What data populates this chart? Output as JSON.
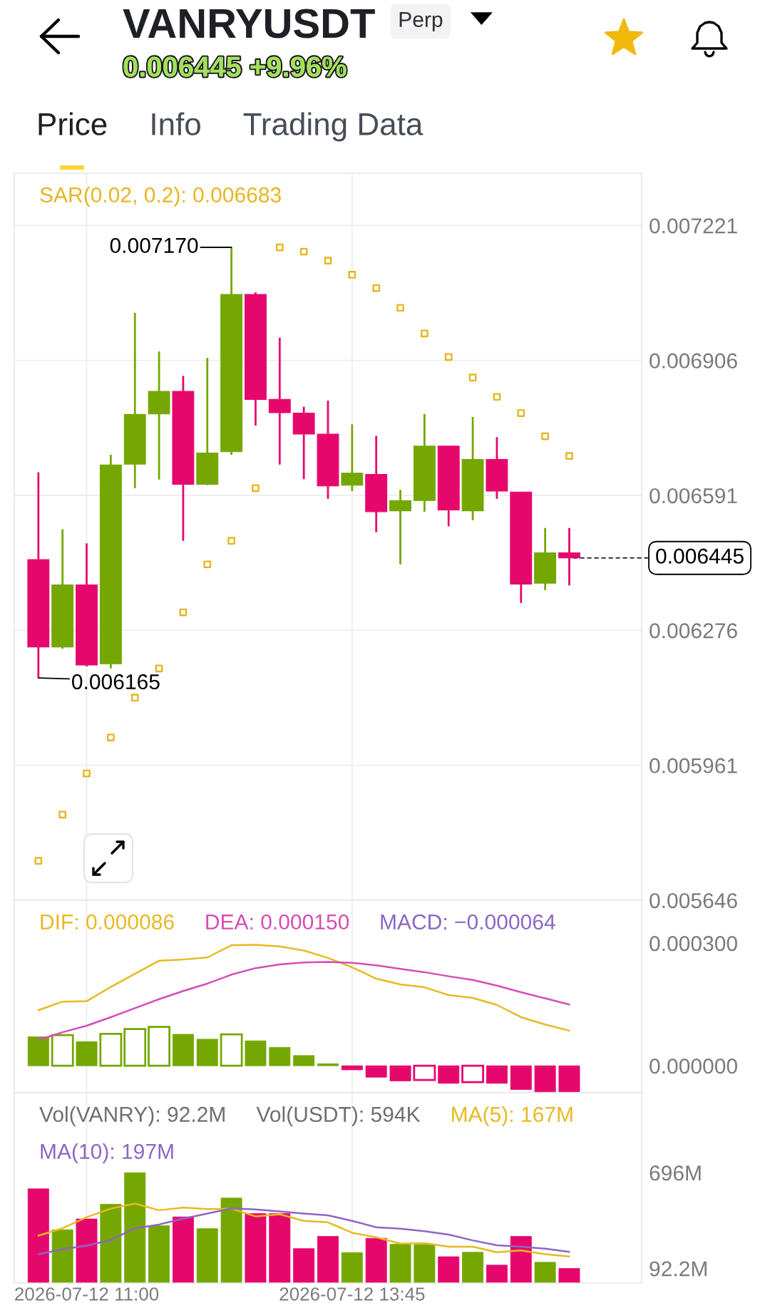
{
  "chart_data": [
    {
      "type": "candlestick",
      "title": "VANRYUSDT",
      "subtitle": "0.006445 +9.96%",
      "annotations": [
        "Perp",
        "Price",
        "Info",
        "Trading Data",
        {
          "text": "0.007170",
          "x": "2026-07-12T12:30",
          "y": 0.00717
        },
        {
          "text": "0.006165",
          "x": "2026-07-12T10:30",
          "y": 0.006165
        },
        {
          "text": "0.006445",
          "x": "2026-07-12T16:00",
          "y": 0.006445
        }
      ],
      "x": [
        "2026-07-12T10:30",
        "2026-07-12T10:45",
        "2026-07-12T11:00",
        "2026-07-12T11:15",
        "2026-07-12T11:30",
        "2026-07-12T11:45",
        "2026-07-12T12:00",
        "2026-07-12T12:15",
        "2026-07-12T12:30",
        "2026-07-12T12:45",
        "2026-07-12T13:00",
        "2026-07-12T13:15",
        "2026-07-12T13:30",
        "2026-07-12T13:45",
        "2026-07-12T14:00",
        "2026-07-12T14:15",
        "2026-07-12T14:30",
        "2026-07-12T14:45",
        "2026-07-12T15:00",
        "2026-07-12T15:15",
        "2026-07-12T15:30",
        "2026-07-12T15:45",
        "2026-07-12T16:00"
      ],
      "ohlc": [
        [
          0.006441,
          0.006645,
          0.006165,
          0.006237
        ],
        [
          0.006237,
          0.006512,
          0.006233,
          0.006382
        ],
        [
          0.006382,
          0.006479,
          0.006192,
          0.006195
        ],
        [
          0.006198,
          0.006686,
          0.006187,
          0.006662
        ],
        [
          0.006664,
          0.007017,
          0.006608,
          0.00678
        ],
        [
          0.006781,
          0.006927,
          0.006628,
          0.006834
        ],
        [
          0.006834,
          0.00687,
          0.006485,
          0.006617
        ],
        [
          0.006617,
          0.006912,
          0.006615,
          0.00669
        ],
        [
          0.006693,
          0.00717,
          0.006686,
          0.00706
        ],
        [
          0.00706,
          0.007065,
          0.006754,
          0.006815
        ],
        [
          0.006815,
          0.006959,
          0.006663,
          0.006784
        ],
        [
          0.006783,
          0.006798,
          0.006629,
          0.006734
        ],
        [
          0.006734,
          0.006812,
          0.006583,
          0.006613
        ],
        [
          0.006615,
          0.006757,
          0.006601,
          0.006643
        ],
        [
          0.00664,
          0.00673,
          0.006505,
          0.006553
        ],
        [
          0.006555,
          0.006604,
          0.00643,
          0.006579
        ],
        [
          0.006579,
          0.006781,
          0.006553,
          0.006706
        ],
        [
          0.006706,
          0.006706,
          0.006519,
          0.006557
        ],
        [
          0.006555,
          0.006774,
          0.006533,
          0.006675
        ],
        [
          0.006675,
          0.006727,
          0.006583,
          0.006601
        ],
        [
          0.006599,
          0.006599,
          0.00634,
          0.006384
        ],
        [
          0.006386,
          0.006515,
          0.00637,
          0.006457
        ],
        [
          0.006457,
          0.006515,
          0.006381,
          0.006445
        ]
      ],
      "colors": [
        "#e6076d",
        "#75a703",
        "#e6076d",
        "#75a703",
        "#75a703",
        "#75a703",
        "#e6076d",
        "#75a703",
        "#75a703",
        "#e6076d",
        "#e6076d",
        "#e6076d",
        "#e6076d",
        "#75a703",
        "#e6076d",
        "#75a703",
        "#75a703",
        "#e6076d",
        "#75a703",
        "#e6076d",
        "#e6076d",
        "#75a703",
        "#e6076d"
      ],
      "series": [
        {
          "name": "SAR(0.02, 0.2): 0.006683",
          "type": "scatter",
          "marker": "square",
          "color": "#e6b520",
          "values": [
            0.005738,
            0.005846,
            0.005942,
            0.006026,
            0.006119,
            0.006187,
            0.006318,
            0.00643,
            0.006485,
            0.006608,
            0.00717,
            0.00716,
            0.007139,
            0.007106,
            0.007075,
            0.007029,
            0.006969,
            0.006914,
            0.006866,
            0.006821,
            0.006783,
            0.006729,
            0.006683
          ]
        }
      ],
      "xlim": [
        "2026-07-12T10:15",
        "2026-07-12T16:45"
      ],
      "xticks": [
        {
          "value": "2026-07-12T11:00",
          "label": null
        },
        {
          "value": "2026-07-12T13:45",
          "label": null
        }
      ],
      "ylim": [
        0.005646,
        0.007343
      ],
      "yticks": [
        0.007221,
        0.006906,
        0.006591,
        0.006276,
        0.005961,
        0.005646
      ],
      "grid": true,
      "legend": "top left",
      "tick_labels": "y"
    },
    {
      "type": "bar",
      "annotations": [
        "MACD: −0.000064"
      ],
      "x": [
        "2026-07-12T10:30",
        "2026-07-12T10:45",
        "2026-07-12T11:00",
        "2026-07-12T11:15",
        "2026-07-12T11:30",
        "2026-07-12T11:45",
        "2026-07-12T12:00",
        "2026-07-12T12:15",
        "2026-07-12T12:30",
        "2026-07-12T12:45",
        "2026-07-12T13:00",
        "2026-07-12T13:15",
        "2026-07-12T13:30",
        "2026-07-12T13:45",
        "2026-07-12T14:00",
        "2026-07-12T14:15",
        "2026-07-12T14:30",
        "2026-07-12T14:45",
        "2026-07-12T15:00",
        "2026-07-12T15:15",
        "2026-07-12T15:30",
        "2026-07-12T15:45",
        "2026-07-12T16:00"
      ],
      "series": [
        {
          "name": "DIF: 0.000086",
          "type": "line",
          "color": "#e8b923",
          "values": [
            0.000136,
            0.000157,
            0.000158,
            0.000193,
            0.000225,
            0.000257,
            0.00026,
            0.000265,
            0.000295,
            0.000296,
            0.000292,
            0.000282,
            0.000264,
            0.000241,
            0.000213,
            0.000199,
            0.000192,
            0.000173,
            0.000166,
            0.000149,
            0.000119,
            0.000101,
            8.6e-05
          ]
        },
        {
          "name": "DEA: 0.000150",
          "type": "line",
          "color": "#d54db6",
          "values": [
            6.3e-05,
            8.2e-05,
            9.8e-05,
            0.000119,
            0.000141,
            0.000163,
            0.000183,
            0.000201,
            0.000223,
            0.000239,
            0.000248,
            0.000253,
            0.000254,
            0.000252,
            0.000246,
            0.000237,
            0.000229,
            0.000219,
            0.00021,
            0.000196,
            0.00018,
            0.000165,
            0.00015
          ]
        },
        {
          "type": "bar",
          "colors": [
            "#75a703",
            "#75a703",
            "#75a703",
            "#75a703",
            "#75a703",
            "#75a703",
            "#75a703",
            "#75a703",
            "#75a703",
            "#75a703",
            "#75a703",
            "#75a703",
            "#75a703",
            "#e6076d",
            "#e6076d",
            "#e6076d",
            "#e6076d",
            "#e6076d",
            "#e6076d",
            "#e6076d",
            "#e6076d",
            "#e6076d",
            "#e6076d"
          ],
          "values": [
            7.1e-05,
            7.5e-05,
            5.9e-05,
            7.8e-05,
            9e-05,
            9.5e-05,
            7.7e-05,
            6.5e-05,
            7.7e-05,
            6.1e-05,
            4.5e-05,
            2.5e-05,
            5e-06,
            -1e-05,
            -2.8e-05,
            -3.7e-05,
            -3.5e-05,
            -4.3e-05,
            -4e-05,
            -4.3e-05,
            -5.8e-05,
            -6.4e-05,
            -6.4e-05
          ]
        }
      ],
      "xlim": [
        "2026-07-12T10:15",
        "2026-07-12T16:45"
      ],
      "xticks": [
        {
          "value": "2026-07-12T11:00",
          "label": null
        },
        {
          "value": "2026-07-12T13:45",
          "label": null
        }
      ],
      "ylim": [
        -6.6e-05,
        0.000405
      ],
      "yticks": [
        {
          "value": 0.0003,
          "label": "0.000300"
        },
        {
          "value": 0,
          "label": "0.000000"
        }
      ],
      "grid": "x",
      "legend": "top left",
      "tick_labels": "y"
    },
    {
      "type": "bar",
      "annotations": [
        "Vol(VANRY): 92.2M",
        "Vol(USDT): 594K"
      ],
      "x": [
        "2026-07-12T10:30",
        "2026-07-12T10:45",
        "2026-07-12T11:00",
        "2026-07-12T11:15",
        "2026-07-12T11:30",
        "2026-07-12T11:45",
        "2026-07-12T12:00",
        "2026-07-12T12:15",
        "2026-07-12T12:30",
        "2026-07-12T12:45",
        "2026-07-12T13:00",
        "2026-07-12T13:15",
        "2026-07-12T13:30",
        "2026-07-12T13:45",
        "2026-07-12T14:00",
        "2026-07-12T14:15",
        "2026-07-12T14:30",
        "2026-07-12T14:45",
        "2026-07-12T15:00",
        "2026-07-12T15:15",
        "2026-07-12T15:30",
        "2026-07-12T15:45",
        "2026-07-12T16:00"
      ],
      "series": [
        {
          "type": "bar",
          "colors": [
            "#e6076d",
            "#75a703",
            "#e6076d",
            "#75a703",
            "#75a703",
            "#75a703",
            "#e6076d",
            "#75a703",
            "#75a703",
            "#e6076d",
            "#e6076d",
            "#e6076d",
            "#e6076d",
            "#75a703",
            "#e6076d",
            "#75a703",
            "#75a703",
            "#e6076d",
            "#75a703",
            "#e6076d",
            "#e6076d",
            "#75a703",
            "#e6076d"
          ],
          "values": [
            594,
            336,
            404,
            497,
            696,
            362,
            417,
            343,
            536,
            438,
            438,
            217,
            294,
            192,
            282,
            245,
            243,
            166,
            194,
            113,
            294,
            131,
            92.2
          ]
        },
        {
          "name": "MA(5): 167M",
          "type": "line",
          "color": "#e8b923",
          "values": [
            299,
            345,
            415,
            469,
            501,
            459,
            476,
            466,
            469,
            420,
            434,
            392,
            383,
            317,
            289,
            248,
            252,
            229,
            229,
            194,
            206,
            182,
            167
          ]
        },
        {
          "name": "MA(10): 197M",
          "type": "line",
          "color": "#8d66c4",
          "values": [
            182,
            213,
            236,
            271,
            345,
            369,
            406,
            438,
            471,
            464,
            452,
            438,
            427,
            392,
            352,
            343,
            327,
            306,
            269,
            238,
            229,
            217,
            197
          ]
        }
      ],
      "xlim": [
        "2026-07-12T10:15",
        "2026-07-12T16:45"
      ],
      "xticks": [
        {
          "value": "2026-07-12T11:00",
          "label": "2026-07-12 11:00"
        },
        {
          "value": "2026-07-12T13:45",
          "label": "2026-07-12 13:45"
        }
      ],
      "ylim": [
        0,
        1200
      ],
      "yticks": [
        {
          "value": 696,
          "label": "696M"
        },
        {
          "value": 92.2,
          "label": "92.2M"
        }
      ],
      "grid": "x",
      "legend": "top left"
    }
  ]
}
